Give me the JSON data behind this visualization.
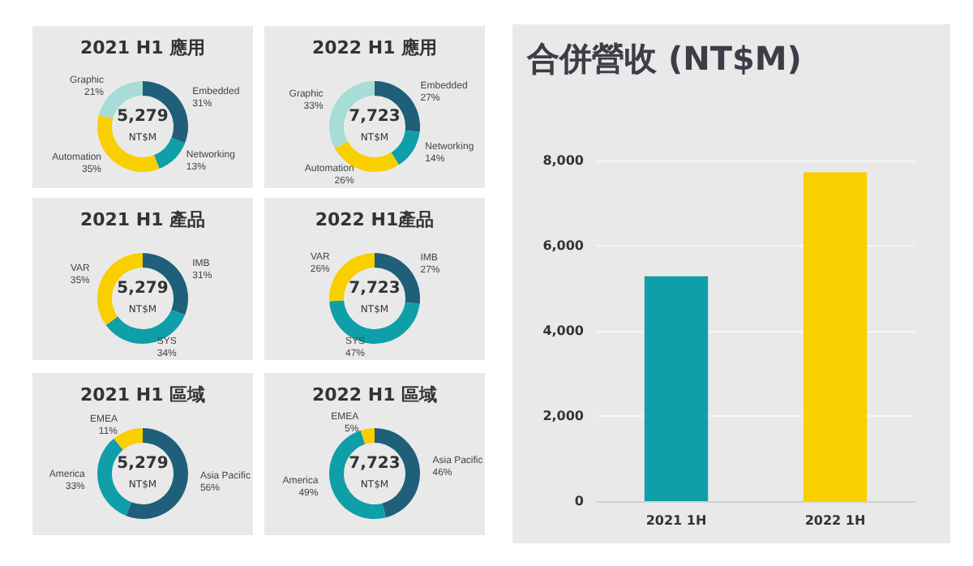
{
  "chart_data": [
    {
      "type": "donut",
      "title": "2021 H1 應用",
      "categories": [
        "Embedded",
        "Networking",
        "Automation",
        "Graphic"
      ],
      "values": [
        31,
        13,
        35,
        21
      ],
      "value_labels": [
        "31%",
        "13%",
        "35%",
        "21%"
      ],
      "colors": [
        "#1f5f7a",
        "#0e9fa8",
        "#f9cf00",
        "#a8dcd6"
      ],
      "annotations": [
        "5,279",
        "NT$M"
      ]
    },
    {
      "type": "donut",
      "title": "2022 H1 應用",
      "categories": [
        "Embedded",
        "Networking",
        "Automation",
        "Graphic"
      ],
      "values": [
        27,
        14,
        26,
        33
      ],
      "value_labels": [
        "27%",
        "14%",
        "26%",
        "33%"
      ],
      "colors": [
        "#1f5f7a",
        "#0e9fa8",
        "#f9cf00",
        "#a8dcd6"
      ],
      "annotations": [
        "7,723",
        "NT$M"
      ]
    },
    {
      "type": "donut",
      "title": "2021 H1 產品",
      "categories": [
        "IMB",
        "SYS",
        "VAR"
      ],
      "values": [
        31,
        34,
        35
      ],
      "value_labels": [
        "31%",
        "34%",
        "35%"
      ],
      "colors": [
        "#1f5f7a",
        "#0e9fa8",
        "#f9cf00"
      ],
      "annotations": [
        "5,279",
        "NT$M"
      ]
    },
    {
      "type": "donut",
      "title": "2022 H1產品",
      "categories": [
        "IMB",
        "SYS",
        "VAR"
      ],
      "values": [
        27,
        47,
        26
      ],
      "value_labels": [
        "27%",
        "47%",
        "26%"
      ],
      "colors": [
        "#1f5f7a",
        "#0e9fa8",
        "#f9cf00"
      ],
      "annotations": [
        "7,723",
        "NT$M"
      ]
    },
    {
      "type": "donut",
      "title": "2021 H1 區域",
      "categories": [
        "Asia Pacific",
        "America",
        "EMEA"
      ],
      "values": [
        56,
        33,
        11
      ],
      "value_labels": [
        "56%",
        "33%",
        "11%"
      ],
      "colors": [
        "#1f5f7a",
        "#0e9fa8",
        "#f9cf00"
      ],
      "annotations": [
        "5,279",
        "NT$M"
      ]
    },
    {
      "type": "donut",
      "title": "2022 H1 區域",
      "categories": [
        "Asia Pacific",
        "America",
        "EMEA"
      ],
      "values": [
        46,
        49,
        5
      ],
      "value_labels": [
        "46%",
        "49%",
        "5%"
      ],
      "colors": [
        "#1f5f7a",
        "#0e9fa8",
        "#f9cf00"
      ],
      "annotations": [
        "7,723",
        "NT$M"
      ]
    },
    {
      "type": "bar",
      "title": "合併營收 (NT$M)",
      "categories": [
        "2021 1H",
        "2022 1H"
      ],
      "values": [
        5279,
        7723
      ],
      "colors": [
        "#0e9fa8",
        "#f9cf00"
      ],
      "ylim": [
        0,
        8000
      ],
      "yticks": [
        {
          "value": 0,
          "label": "0"
        },
        {
          "value": 2000,
          "label": "2,000"
        },
        {
          "value": 4000,
          "label": "4,000"
        },
        {
          "value": 6000,
          "label": "6,000"
        },
        {
          "value": 8000,
          "label": "8,000"
        }
      ],
      "grid": "y"
    }
  ]
}
